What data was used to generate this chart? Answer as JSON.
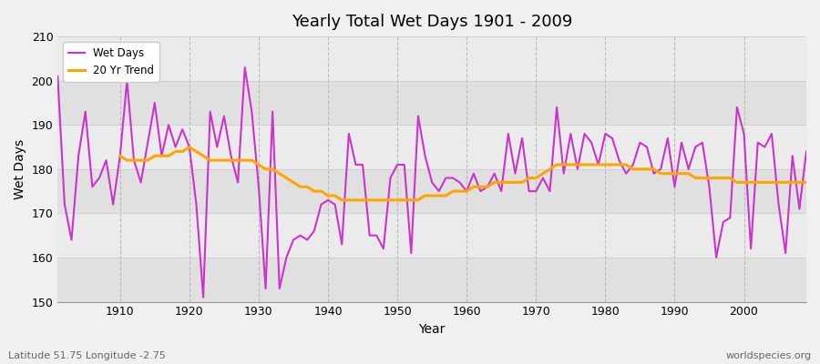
{
  "title": "Yearly Total Wet Days 1901 - 2009",
  "xlabel": "Year",
  "ylabel": "Wet Days",
  "bottom_left_label": "Latitude 51.75 Longitude -2.75",
  "bottom_right_label": "worldspecies.org",
  "ylim": [
    150,
    210
  ],
  "yticks": [
    150,
    160,
    170,
    180,
    190,
    200,
    210
  ],
  "legend_labels": [
    "Wet Days",
    "20 Yr Trend"
  ],
  "wet_days_color": "#cc33cc",
  "trend_color": "#ffa500",
  "bg_color": "#f0f0f0",
  "plot_bg_color": "#e8e8e8",
  "band_colors": [
    "#e0e0e0",
    "#ebebeb"
  ],
  "years": [
    1901,
    1902,
    1903,
    1904,
    1905,
    1906,
    1907,
    1908,
    1909,
    1910,
    1911,
    1912,
    1913,
    1914,
    1915,
    1916,
    1917,
    1918,
    1919,
    1920,
    1921,
    1922,
    1923,
    1924,
    1925,
    1926,
    1927,
    1928,
    1929,
    1930,
    1931,
    1932,
    1933,
    1934,
    1935,
    1936,
    1937,
    1938,
    1939,
    1940,
    1941,
    1942,
    1943,
    1944,
    1945,
    1946,
    1947,
    1948,
    1949,
    1950,
    1951,
    1952,
    1953,
    1954,
    1955,
    1956,
    1957,
    1958,
    1959,
    1960,
    1961,
    1962,
    1963,
    1964,
    1965,
    1966,
    1967,
    1968,
    1969,
    1970,
    1971,
    1972,
    1973,
    1974,
    1975,
    1976,
    1977,
    1978,
    1979,
    1980,
    1981,
    1982,
    1983,
    1984,
    1985,
    1986,
    1987,
    1988,
    1989,
    1990,
    1991,
    1992,
    1993,
    1994,
    1995,
    1996,
    1997,
    1998,
    1999,
    2000,
    2001,
    2002,
    2003,
    2004,
    2005,
    2006,
    2007,
    2008,
    2009
  ],
  "wet_days": [
    201,
    172,
    164,
    183,
    193,
    176,
    178,
    182,
    172,
    183,
    200,
    182,
    177,
    186,
    195,
    183,
    190,
    185,
    189,
    185,
    172,
    151,
    193,
    185,
    192,
    183,
    177,
    203,
    193,
    176,
    153,
    193,
    153,
    160,
    164,
    165,
    164,
    166,
    172,
    173,
    172,
    163,
    188,
    181,
    181,
    165,
    165,
    162,
    178,
    181,
    181,
    161,
    192,
    183,
    177,
    175,
    178,
    178,
    177,
    175,
    179,
    175,
    176,
    179,
    175,
    188,
    179,
    187,
    175,
    175,
    178,
    175,
    194,
    179,
    188,
    180,
    188,
    186,
    181,
    188,
    187,
    182,
    179,
    181,
    186,
    185,
    179,
    180,
    187,
    176,
    186,
    180,
    185,
    186,
    176,
    160,
    168,
    169,
    194,
    188,
    162,
    186,
    185,
    188,
    172,
    161,
    183,
    171,
    184
  ],
  "trend": [
    null,
    null,
    null,
    null,
    null,
    null,
    null,
    null,
    null,
    183,
    182,
    182,
    182,
    182,
    183,
    183,
    183,
    184,
    184,
    185,
    184,
    183,
    182,
    182,
    182,
    182,
    182,
    182,
    182,
    181,
    180,
    180,
    179,
    178,
    177,
    176,
    176,
    175,
    175,
    174,
    174,
    173,
    173,
    173,
    173,
    173,
    173,
    173,
    173,
    173,
    173,
    173,
    173,
    174,
    174,
    174,
    174,
    175,
    175,
    175,
    176,
    176,
    176,
    177,
    177,
    177,
    177,
    177,
    178,
    178,
    179,
    180,
    181,
    181,
    181,
    181,
    181,
    181,
    181,
    181,
    181,
    181,
    181,
    180,
    180,
    180,
    180,
    179,
    179,
    179,
    179,
    179,
    178,
    178,
    178,
    178,
    178,
    178,
    177,
    177,
    177,
    177,
    177,
    177,
    177,
    177,
    177,
    177,
    177
  ]
}
